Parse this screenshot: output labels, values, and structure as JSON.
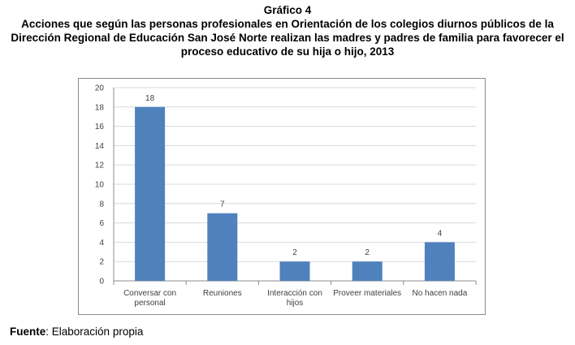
{
  "figure_label": "Gráfico 4",
  "source_label": "Fuente",
  "source_text": ": Elaboración propia",
  "colors": {
    "bar": "#4f81bd",
    "grid": "#d9d9d9",
    "axis": "#8c8c8c"
  },
  "chart_data": {
    "type": "bar",
    "title": "Acciones que según las personas profesionales en Orientación de los colegios diurnos públicos de la Dirección Regional de Educación San José Norte realizan las madres y padres de familia para favorecer el proceso educativo de su hija o hijo, 2013",
    "categories": [
      [
        "Conversar con",
        "personal"
      ],
      [
        "Reuniones"
      ],
      [
        "Interacción con",
        "hijos"
      ],
      [
        "Proveer materiales"
      ],
      [
        "No hacen nada"
      ]
    ],
    "values": [
      18,
      7,
      2,
      2,
      4
    ],
    "data_labels": [
      "18",
      "7",
      "2",
      "2",
      "4"
    ],
    "ylim": [
      0,
      20
    ],
    "yticks": [
      0,
      2,
      4,
      6,
      8,
      10,
      12,
      14,
      16,
      18,
      20
    ],
    "grid": true,
    "legend": "none"
  }
}
